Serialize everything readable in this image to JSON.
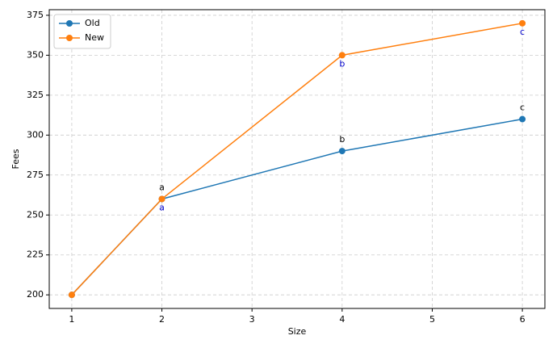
{
  "chart_data": {
    "type": "line",
    "x_label": "Size",
    "y_label": "Fees",
    "x": [
      1,
      2,
      4,
      6
    ],
    "series": [
      {
        "name": "Old",
        "color": "#1f77b4",
        "values": [
          200,
          260,
          290,
          310
        ],
        "point_labels": [
          null,
          "a",
          "b",
          "c"
        ],
        "point_label_color": "#000000",
        "point_label_side": "above"
      },
      {
        "name": "New",
        "color": "#ff7f0e",
        "values": [
          200,
          260,
          350,
          370
        ],
        "point_labels": [
          null,
          "a",
          "b",
          "c"
        ],
        "point_label_color": "#0000cc",
        "point_label_side": "below"
      }
    ],
    "xlim": [
      0.75,
      6.25
    ],
    "xticks": [
      1,
      2,
      3,
      4,
      5,
      6
    ],
    "ylim": [
      191.5,
      378.5
    ],
    "yticks": [
      200,
      225,
      250,
      275,
      300,
      325,
      350,
      375
    ],
    "grid": true,
    "legend": "upper-left"
  }
}
